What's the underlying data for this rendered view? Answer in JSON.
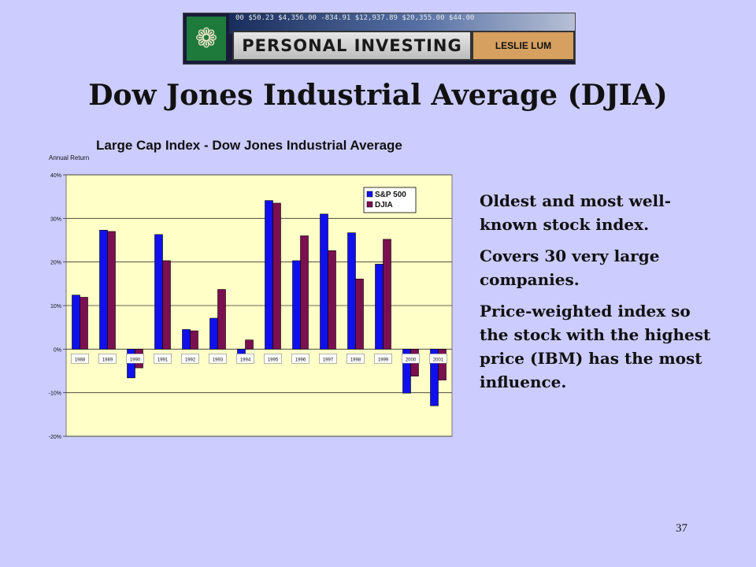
{
  "banner": {
    "ticker": "00 $50.23 $4,356.00 -834.91 $12,937.89 $20,355.00 $44.00",
    "title": "PERSONAL INVESTING",
    "author": "LESLIE LUM",
    "logo_glyph": "❁"
  },
  "slide_title": "Dow Jones Industrial Average (DJIA)",
  "chart_data": {
    "type": "bar",
    "title": "Large Cap Index - Dow Jones Industrial Average",
    "ylabel": "Annual Return",
    "categories": [
      "1988",
      "1989",
      "1990",
      "1991",
      "1992",
      "1993",
      "1994",
      "1995",
      "1996",
      "1997",
      "1998",
      "1999",
      "2000",
      "2001"
    ],
    "series": [
      {
        "name": "S&P 500",
        "color": "#1010ee",
        "values": [
          12.4,
          27.3,
          -6.6,
          26.3,
          4.5,
          7.1,
          -1.5,
          34.1,
          20.3,
          31.0,
          26.7,
          19.5,
          -10.1,
          -13.0
        ]
      },
      {
        "name": "DJIA",
        "color": "#7a1050",
        "values": [
          11.9,
          27.0,
          -4.3,
          20.3,
          4.2,
          13.7,
          2.1,
          33.5,
          26.0,
          22.6,
          16.1,
          25.2,
          -6.2,
          -7.1
        ]
      }
    ],
    "ylim": [
      -20,
      40
    ],
    "yticks": [
      -20,
      -10,
      0,
      10,
      20,
      30,
      40
    ],
    "ytick_labels": [
      "-20%",
      "-10%",
      "0%",
      "10%",
      "20%",
      "30%",
      "40%"
    ],
    "grid": true,
    "legend": "top-right",
    "plot_background": "#ffffc8"
  },
  "bullets": [
    "Oldest and most well-known stock index.",
    "Covers 30 very large companies.",
    "Price-weighted index so the stock with the highest price (IBM) has the most influence."
  ],
  "page_number": "37"
}
